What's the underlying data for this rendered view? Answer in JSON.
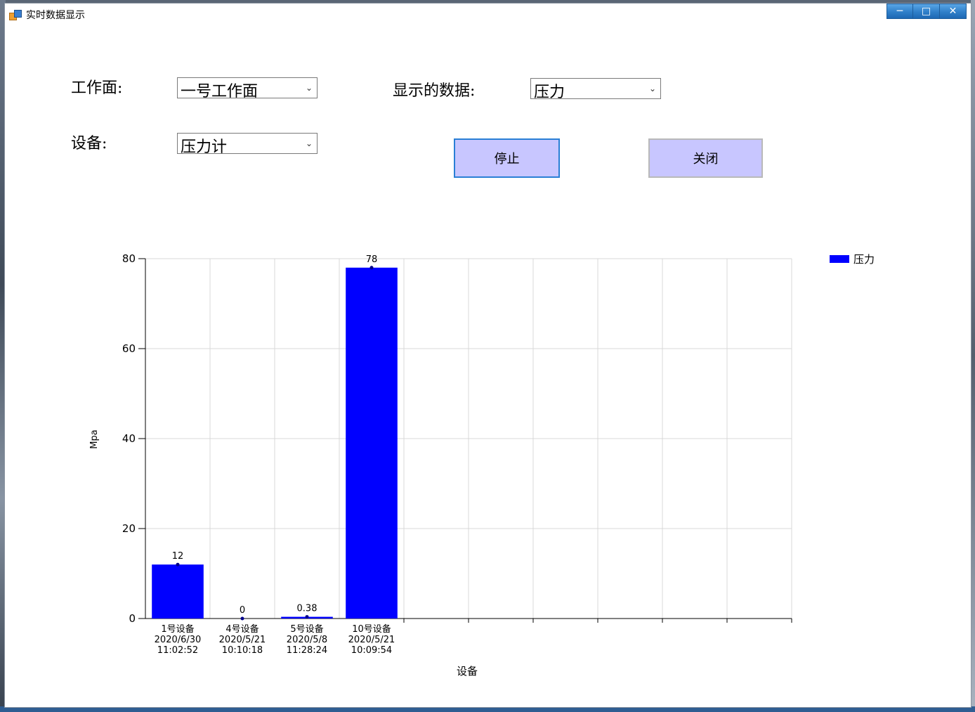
{
  "window": {
    "title": "实时数据显示"
  },
  "titlebar": {
    "minimize_icon": "minimize-icon",
    "maximize_icon": "maximize-icon",
    "close_icon": "close-icon"
  },
  "form": {
    "workface_label": "工作面:",
    "workface_value": "一号工作面",
    "device_label": "设备:",
    "device_value": "压力计",
    "data_label": "显示的数据:",
    "data_value": "压力",
    "stop_button": "停止",
    "close_button": "关闭"
  },
  "colors": {
    "bar": "#0000ff",
    "button_bg": "#c8c6ff",
    "grid": "#d9d9d9"
  },
  "chart_data": {
    "type": "bar",
    "categories": [
      [
        "1号设备",
        "2020/6/30",
        "11:02:52"
      ],
      [
        "4号设备",
        "2020/5/21",
        "10:10:18"
      ],
      [
        "5号设备",
        "2020/5/8",
        "11:28:24"
      ],
      [
        "10号设备",
        "2020/5/21",
        "10:09:54"
      ]
    ],
    "series": [
      {
        "name": "压力",
        "values": [
          12,
          0,
          0.38,
          78
        ]
      }
    ],
    "data_labels": [
      "12",
      "0",
      "0.38",
      "78"
    ],
    "xlabel": "设备",
    "ylabel": "Mpa",
    "ylim": [
      0,
      80
    ],
    "yticks": [
      0,
      20,
      40,
      60,
      80
    ],
    "x_slots": 10,
    "grid": true,
    "legend": "top-right"
  }
}
